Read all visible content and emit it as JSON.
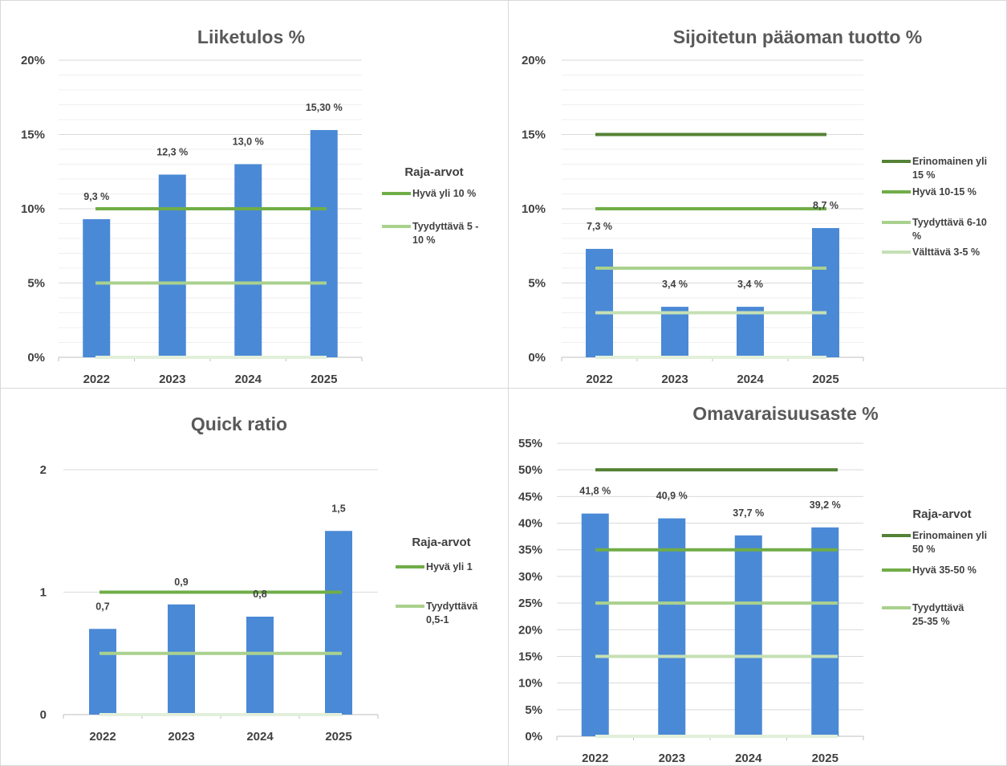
{
  "chart_data": [
    {
      "type": "bar",
      "title": "Liiketulos %",
      "categories": [
        "2022",
        "2023",
        "2024",
        "2025"
      ],
      "values": [
        9.3,
        12.3,
        13.0,
        15.3
      ],
      "value_labels": [
        "9,3 %",
        "12,3 %",
        "13,0 %",
        "15,30 %"
      ],
      "ylim": [
        0,
        20
      ],
      "yticks": [
        0,
        5,
        10,
        15,
        20
      ],
      "ytick_labels": [
        "0%",
        "5%",
        "10%",
        "15%",
        "20%"
      ],
      "minor_gridlines": true,
      "legend_title": "Raja-arvot",
      "legend_placement": "right",
      "thresholds": [
        {
          "name": "Hyvä yli 10 %",
          "value": 10,
          "color": "#70ad47"
        },
        {
          "name": "Tyydyttävä 5 - 10 %",
          "value": 5,
          "color": "#a9d18e"
        },
        {
          "name": "",
          "value": 0,
          "color": "#e2efda"
        }
      ]
    },
    {
      "type": "bar",
      "title": "Sijoitetun pääoman tuotto %",
      "categories": [
        "2022",
        "2023",
        "2024",
        "2025"
      ],
      "values": [
        7.3,
        3.4,
        3.4,
        8.7
      ],
      "value_labels": [
        "7,3 %",
        "3,4 %",
        "3,4 %",
        "8,7 %"
      ],
      "ylim": [
        0,
        20
      ],
      "yticks": [
        0,
        5,
        10,
        15,
        20
      ],
      "ytick_labels": [
        "0%",
        "5%",
        "10%",
        "15%",
        "20%"
      ],
      "minor_gridlines": true,
      "legend_title": "",
      "legend_placement": "right",
      "thresholds": [
        {
          "name": "Erinomainen yli 15 %",
          "value": 15,
          "color": "#548235"
        },
        {
          "name": "Hyvä 10-15 %",
          "value": 10,
          "color": "#70ad47"
        },
        {
          "name": "Tyydyttävä 6-10 %",
          "value": 6,
          "color": "#a9d18e"
        },
        {
          "name": "Välttävä 3-5 %",
          "value": 3,
          "color": "#c5e0b4"
        },
        {
          "name": "",
          "value": 0,
          "color": "#e2efda"
        }
      ]
    },
    {
      "type": "bar",
      "title": "Quick ratio",
      "categories": [
        "2022",
        "2023",
        "2024",
        "2025"
      ],
      "values": [
        0.7,
        0.9,
        0.8,
        1.5
      ],
      "value_labels": [
        "0,7",
        "0,9",
        "0,8",
        "1,5"
      ],
      "ylim": [
        0,
        2
      ],
      "yticks": [
        0,
        1,
        2
      ],
      "ytick_labels": [
        "0",
        "1",
        "2"
      ],
      "minor_gridlines": false,
      "legend_title": "Raja-arvot",
      "legend_placement": "right",
      "thresholds": [
        {
          "name": "Hyvä yli 1",
          "value": 1,
          "color": "#70ad47"
        },
        {
          "name": "Tyydyttävä 0,5-1",
          "value": 0.5,
          "color": "#a9d18e"
        },
        {
          "name": "",
          "value": 0,
          "color": "#e2efda"
        }
      ]
    },
    {
      "type": "bar",
      "title": "Omavaraisuusaste %",
      "categories": [
        "2022",
        "2023",
        "2024",
        "2025"
      ],
      "values": [
        41.8,
        40.9,
        37.7,
        39.2
      ],
      "value_labels": [
        "41,8 %",
        "40,9 %",
        "37,7 %",
        "39,2 %"
      ],
      "ylim": [
        0,
        55
      ],
      "yticks": [
        0,
        5,
        10,
        15,
        20,
        25,
        30,
        35,
        40,
        45,
        50,
        55
      ],
      "ytick_labels": [
        "0%",
        "5%",
        "10%",
        "15%",
        "20%",
        "25%",
        "30%",
        "35%",
        "40%",
        "45%",
        "50%",
        "55%"
      ],
      "minor_gridlines": false,
      "legend_title": "Raja-arvot",
      "legend_placement": "right",
      "thresholds": [
        {
          "name": "Erinomainen yli 50 %",
          "value": 50,
          "color": "#548235"
        },
        {
          "name": "Hyvä 35-50 %",
          "value": 35,
          "color": "#70ad47"
        },
        {
          "name": "Tyydyttävä 25-35 %",
          "value": 25,
          "color": "#a9d18e"
        },
        {
          "name": "",
          "value": 15,
          "color": "#c5e0b4"
        },
        {
          "name": "",
          "value": 0,
          "color": "#e2efda"
        }
      ]
    }
  ],
  "colors": {
    "bar": "#4a89d6",
    "grid": "#d9d9d9",
    "minor_grid": "#efefef"
  }
}
